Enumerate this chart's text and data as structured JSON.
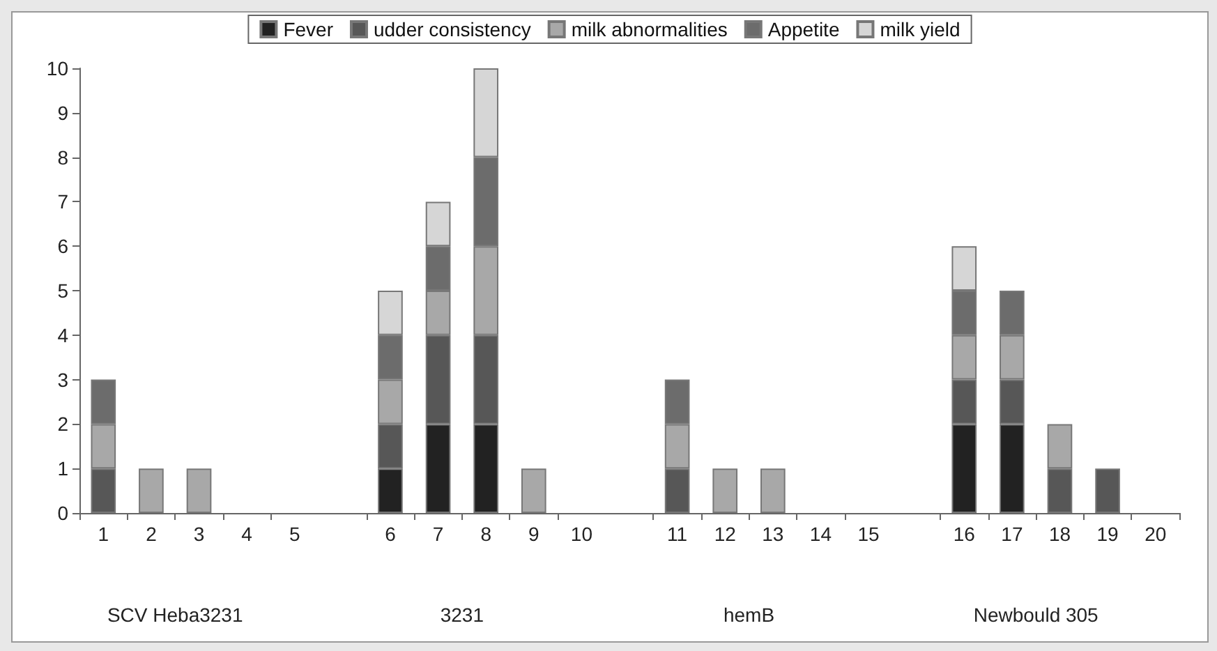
{
  "chart_data": {
    "type": "bar",
    "stacked": true,
    "categories": [
      "1",
      "2",
      "3",
      "4",
      "5",
      null,
      "6",
      "7",
      "8",
      "9",
      "10",
      null,
      "11",
      "12",
      "13",
      "14",
      "15",
      null,
      "16",
      "17",
      "18",
      "19",
      "20"
    ],
    "series": [
      {
        "name": "Fever",
        "color": "#222222",
        "values": [
          0,
          0,
          0,
          0,
          0,
          null,
          1,
          2,
          2,
          0,
          0,
          null,
          0,
          0,
          0,
          0,
          0,
          null,
          2,
          2,
          0,
          0,
          0
        ]
      },
      {
        "name": "udder consistency",
        "color": "#575757",
        "values": [
          1,
          0,
          0,
          0,
          0,
          null,
          1,
          2,
          2,
          0,
          0,
          null,
          1,
          0,
          0,
          0,
          0,
          null,
          1,
          1,
          1,
          1,
          0
        ]
      },
      {
        "name": "milk abnormalities",
        "color": "#a8a8a8",
        "values": [
          1,
          1,
          1,
          0,
          0,
          null,
          1,
          1,
          2,
          1,
          0,
          null,
          1,
          1,
          1,
          0,
          0,
          null,
          1,
          1,
          1,
          0,
          0
        ]
      },
      {
        "name": "Appetite",
        "color": "#6c6c6c",
        "values": [
          1,
          0,
          0,
          0,
          0,
          null,
          1,
          1,
          2,
          0,
          0,
          null,
          1,
          0,
          0,
          0,
          0,
          null,
          1,
          1,
          0,
          0,
          0
        ]
      },
      {
        "name": "milk yield",
        "color": "#d6d6d6",
        "values": [
          0,
          0,
          0,
          0,
          0,
          null,
          1,
          1,
          2,
          0,
          0,
          null,
          0,
          0,
          0,
          0,
          0,
          null,
          1,
          0,
          0,
          0,
          0
        ]
      }
    ],
    "ylim": [
      0,
      10
    ],
    "yticks": [
      0,
      1,
      2,
      3,
      4,
      5,
      6,
      7,
      8,
      9,
      10
    ],
    "grid": false,
    "legend": "top",
    "annotations": [
      "SCV Heba3231",
      "3231",
      "hemB",
      "Newbould 305"
    ]
  }
}
